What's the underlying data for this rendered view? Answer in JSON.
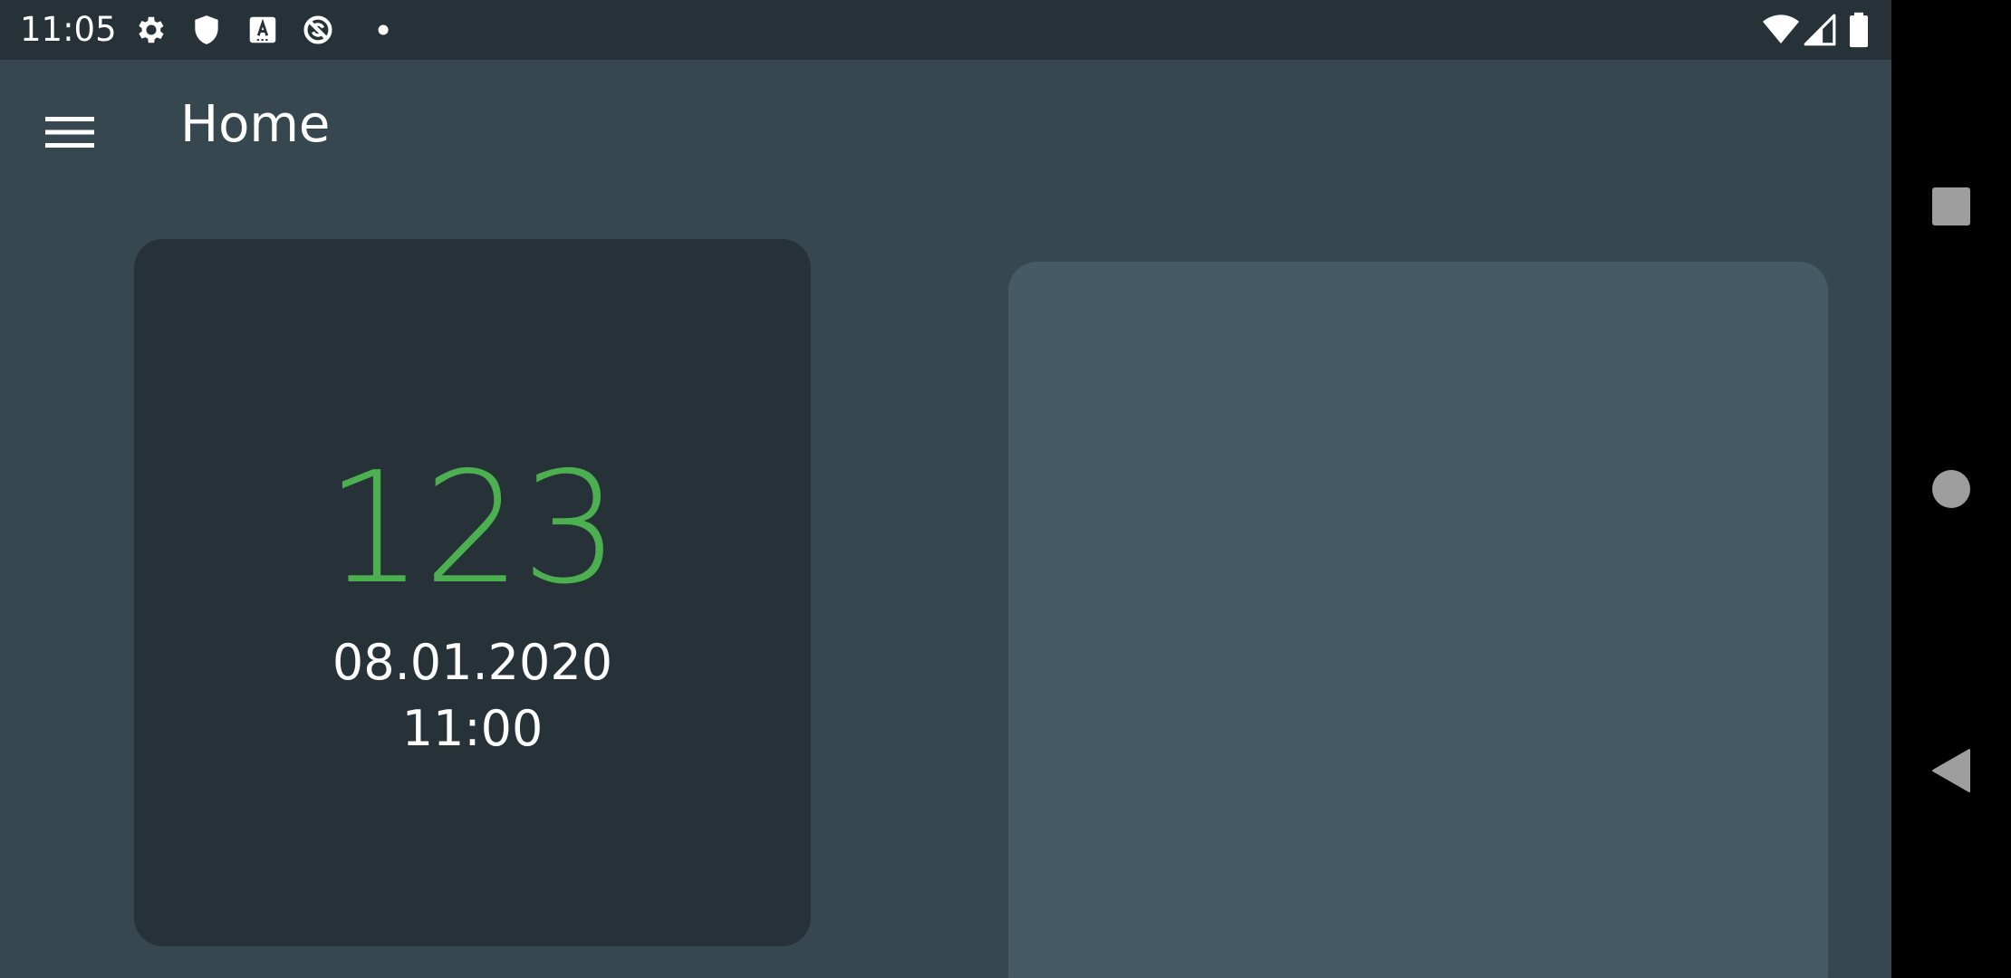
{
  "status_bar": {
    "time": "11:05",
    "left_icons": [
      "gear-icon",
      "shield-icon",
      "keyboard-a-icon",
      "no-sync-icon",
      "dot-icon"
    ],
    "right_icons": [
      "wifi-icon",
      "signal-icon",
      "battery-icon"
    ]
  },
  "app_bar": {
    "title": "Home",
    "menu_icon": "menu-icon"
  },
  "value_card": {
    "value": "123",
    "date": "08.01.2020",
    "time": "11:00",
    "value_color": "#4caf50"
  },
  "nav_bar": {
    "buttons": [
      "recents-square-icon",
      "home-circle-icon",
      "back-triangle-icon"
    ]
  },
  "colors": {
    "background": "#37474f",
    "status_bar": "#263238",
    "card": "#263238",
    "panel": "#455a64",
    "accent": "#4caf50"
  }
}
